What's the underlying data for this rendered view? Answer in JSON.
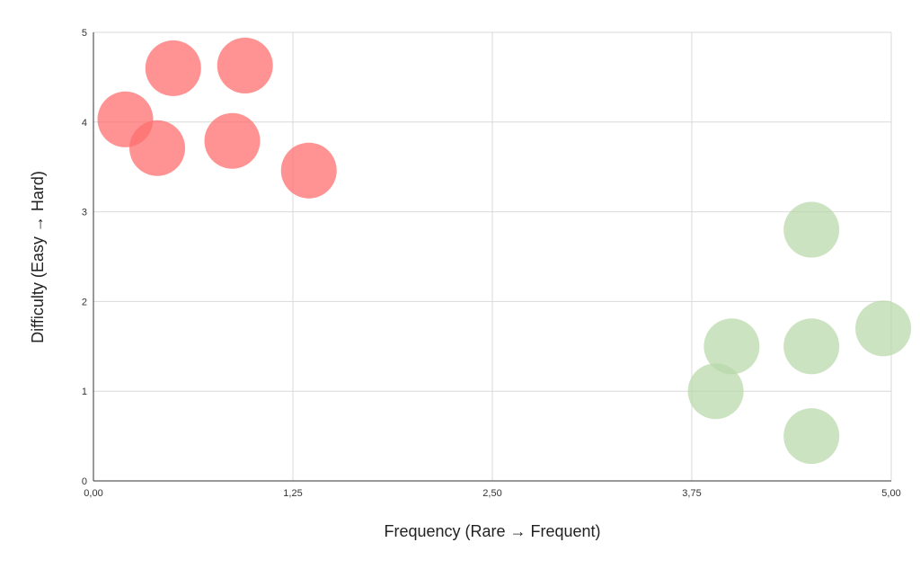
{
  "chart_data": {
    "type": "scatter",
    "title": "",
    "xlabel": "Frequency (Rare → Frequent)",
    "ylabel": "Difficulty (Easy → Hard)",
    "xlim": [
      0,
      5
    ],
    "ylim": [
      0,
      5
    ],
    "grid": true,
    "x_ticks": [
      {
        "value": 0,
        "label": "0,00"
      },
      {
        "value": 1.25,
        "label": "1,25"
      },
      {
        "value": 2.5,
        "label": "2,50"
      },
      {
        "value": 3.75,
        "label": "3,75"
      },
      {
        "value": 5,
        "label": "5,00"
      }
    ],
    "y_ticks": [
      {
        "value": 0,
        "label": "0"
      },
      {
        "value": 1,
        "label": "1"
      },
      {
        "value": 2,
        "label": "2"
      },
      {
        "value": 3,
        "label": "3"
      },
      {
        "value": 4,
        "label": "4"
      },
      {
        "value": 5,
        "label": "5"
      }
    ],
    "series": [
      {
        "color": "#ff6f6f",
        "points": [
          {
            "x": 0.2,
            "y": 4.03
          },
          {
            "x": 0.4,
            "y": 3.71
          },
          {
            "x": 0.5,
            "y": 4.6
          },
          {
            "x": 0.87,
            "y": 3.79
          },
          {
            "x": 0.95,
            "y": 4.63
          },
          {
            "x": 1.35,
            "y": 3.46
          }
        ]
      },
      {
        "color": "#b6d7a8",
        "points": [
          {
            "x": 3.9,
            "y": 1.0
          },
          {
            "x": 4.0,
            "y": 1.5
          },
          {
            "x": 4.5,
            "y": 2.8
          },
          {
            "x": 4.5,
            "y": 1.5
          },
          {
            "x": 4.5,
            "y": 0.5
          },
          {
            "x": 4.95,
            "y": 1.7
          }
        ]
      }
    ]
  }
}
